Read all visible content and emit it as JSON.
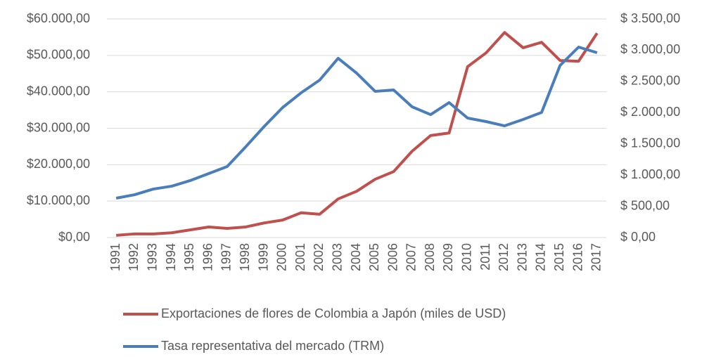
{
  "chart_data": {
    "type": "line",
    "x": [
      "1991",
      "1992",
      "1993",
      "1994",
      "1995",
      "1996",
      "1997",
      "1998",
      "1999",
      "2000",
      "2001",
      "2002",
      "2003",
      "2004",
      "2005",
      "2006",
      "2007",
      "2008",
      "2009",
      "2010",
      "2011",
      "2012",
      "2013",
      "2014",
      "2015",
      "2016",
      "2017"
    ],
    "series": [
      {
        "name": "Exportaciones de flores de Colombia a Japón (miles de USD)",
        "color": "#c0504d",
        "values": [
          600,
          1000,
          1000,
          1300,
          2100,
          2900,
          2500,
          2900,
          4000,
          4800,
          6800,
          6400,
          10600,
          12700,
          16000,
          18100,
          23700,
          28000,
          28700,
          46900,
          50700,
          56300,
          52100,
          53600,
          48600,
          48400,
          56100
        ]
      },
      {
        "name": "Tasa representativa del mercado (TRM)",
        "color": "#4a7ebb",
        "axis": "y2",
        "values": [
          630,
          686,
          776,
          822,
          912,
          1024,
          1137,
          1452,
          1778,
          2082,
          2318,
          2521,
          2870,
          2633,
          2341,
          2363,
          2093,
          1969,
          2161,
          1913,
          1857,
          1789,
          1891,
          2003,
          2757,
          3050,
          2960
        ]
      }
    ],
    "ylim": [
      0,
      60000
    ],
    "yticks": [
      {
        "value": 0,
        "label": "$0,00"
      },
      {
        "value": 10000,
        "label": "$10.000,00"
      },
      {
        "value": 20000,
        "label": "$20.000,00"
      },
      {
        "value": 30000,
        "label": "$30.000,00"
      },
      {
        "value": 40000,
        "label": "$40.000,00"
      },
      {
        "value": 50000,
        "label": "$50.000,00"
      },
      {
        "value": 60000,
        "label": "$60.000,00"
      }
    ],
    "y2lim": [
      0,
      3500
    ],
    "y2ticks": [
      {
        "value": 0,
        "label": "$ 0,00"
      },
      {
        "value": 500,
        "label": "$ 500,00"
      },
      {
        "value": 1000,
        "label": "$ 1.000,00"
      },
      {
        "value": 1500,
        "label": "$ 1.500,00"
      },
      {
        "value": 2000,
        "label": "$ 2.000,00"
      },
      {
        "value": 2500,
        "label": "$ 2.500,00"
      },
      {
        "value": 3000,
        "label": "$ 3.000,00"
      },
      {
        "value": 3500,
        "label": "$ 3.500,00"
      }
    ],
    "grid": true,
    "legend": "bottom"
  }
}
